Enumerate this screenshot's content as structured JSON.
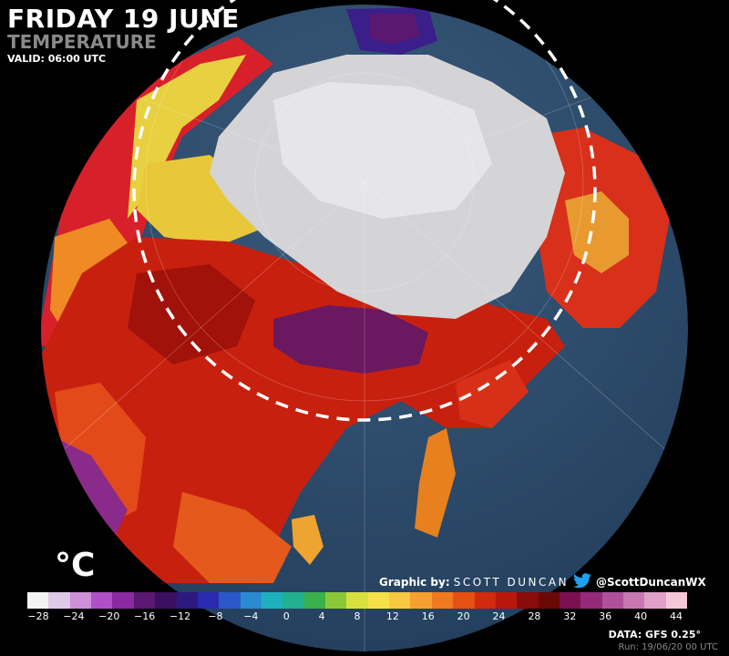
{
  "header": {
    "title": "FRIDAY 19 JUNE",
    "subtitle": "TEMPERATURE",
    "valid": "VALID: 06:00 UTC"
  },
  "legend": {
    "unit": "°C",
    "tick_labels": [
      "−28",
      "−24",
      "−20",
      "−16",
      "−12",
      "−8",
      "−4",
      "0",
      "4",
      "8",
      "12",
      "16",
      "20",
      "24",
      "28",
      "32",
      "36",
      "40",
      "44"
    ],
    "colors": [
      "#f2f2f2",
      "#e0c8e8",
      "#cc8fd8",
      "#b050c8",
      "#8a2aa0",
      "#5a1870",
      "#3a1060",
      "#2a1a80",
      "#2a2ab0",
      "#2a58c8",
      "#2a8ad0",
      "#1fb0c0",
      "#22b090",
      "#3ab04a",
      "#8ac83a",
      "#d8e040",
      "#f5e04a",
      "#f8c840",
      "#f5a030",
      "#ef7a20",
      "#e55015",
      "#d02a10",
      "#b8180c",
      "#8a0c0a",
      "#6a0808",
      "#7a1050",
      "#962a7a",
      "#b0509a",
      "#c878b0",
      "#e0a0c8",
      "#f5c8d8"
    ]
  },
  "credit": {
    "prefix": "Graphic by: ",
    "author": "SCOTT DUNCAN",
    "handle": "@ScottDuncanWX"
  },
  "source": {
    "data": "DATA: GFS 0.25°",
    "run": "Run: 19/06/20 00 UTC"
  },
  "colors": {
    "background": "#000000",
    "ocean": "#2c4a6a",
    "sea_ice": "#d4d4d6",
    "hot": "#c0200c",
    "extreme_hot": "#6a1860",
    "arctic_circle": "#ffffff"
  }
}
